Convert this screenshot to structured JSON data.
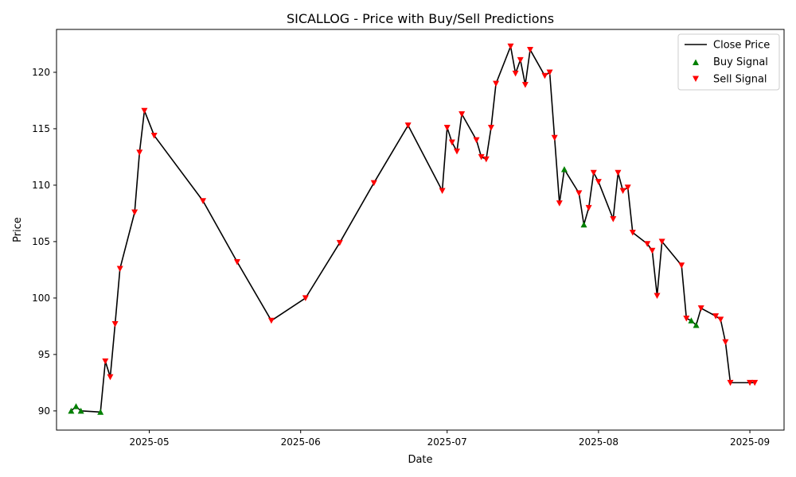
{
  "chart_data": {
    "type": "line",
    "title": "SICALLOG - Price with Buy/Sell Predictions",
    "xlabel": "Date",
    "ylabel": "Price",
    "xlim": [
      "2025-04-12",
      "2025-09-08"
    ],
    "ylim": [
      88.3,
      123.8
    ],
    "x_ticks": [
      "2025-05-01",
      "2025-06-01",
      "2025-07-01",
      "2025-08-01",
      "2025-09-01"
    ],
    "x_tick_labels": [
      "2025-05",
      "2025-06",
      "2025-07",
      "2025-08",
      "2025-09"
    ],
    "y_ticks": [
      90,
      95,
      100,
      105,
      110,
      115,
      120
    ],
    "legend": {
      "position": "top-right",
      "entries": [
        "Close Price",
        "Buy Signal",
        "Sell Signal"
      ]
    },
    "colors": {
      "close": "#000000",
      "buy": "#008000",
      "sell": "#ff0000"
    },
    "series": [
      {
        "name": "Close Price",
        "kind": "line",
        "points": [
          [
            "2025-04-15",
            90.0
          ],
          [
            "2025-04-16",
            90.4
          ],
          [
            "2025-04-17",
            90.0
          ],
          [
            "2025-04-21",
            89.9
          ],
          [
            "2025-04-22",
            94.4
          ],
          [
            "2025-04-23",
            93.0
          ],
          [
            "2025-04-24",
            97.7
          ],
          [
            "2025-04-25",
            102.6
          ],
          [
            "2025-04-28",
            107.6
          ],
          [
            "2025-04-29",
            112.9
          ],
          [
            "2025-04-30",
            116.6
          ],
          [
            "2025-05-02",
            114.4
          ],
          [
            "2025-05-12",
            108.6
          ],
          [
            "2025-05-19",
            103.2
          ],
          [
            "2025-05-26",
            98.0
          ],
          [
            "2025-06-02",
            100.0
          ],
          [
            "2025-06-09",
            104.9
          ],
          [
            "2025-06-16",
            110.2
          ],
          [
            "2025-06-23",
            115.3
          ],
          [
            "2025-06-30",
            109.5
          ],
          [
            "2025-07-01",
            115.1
          ],
          [
            "2025-07-02",
            113.8
          ],
          [
            "2025-07-03",
            113.0
          ],
          [
            "2025-07-04",
            116.3
          ],
          [
            "2025-07-07",
            114.0
          ],
          [
            "2025-07-08",
            112.5
          ],
          [
            "2025-07-09",
            112.3
          ],
          [
            "2025-07-10",
            115.1
          ],
          [
            "2025-07-11",
            119.0
          ],
          [
            "2025-07-14",
            122.3
          ],
          [
            "2025-07-15",
            119.9
          ],
          [
            "2025-07-16",
            121.1
          ],
          [
            "2025-07-17",
            118.9
          ],
          [
            "2025-07-18",
            122.0
          ],
          [
            "2025-07-21",
            119.7
          ],
          [
            "2025-07-22",
            120.0
          ],
          [
            "2025-07-23",
            114.2
          ],
          [
            "2025-07-24",
            108.4
          ],
          [
            "2025-07-25",
            111.4
          ],
          [
            "2025-07-28",
            109.3
          ],
          [
            "2025-07-29",
            106.5
          ],
          [
            "2025-07-30",
            108.0
          ],
          [
            "2025-07-31",
            111.1
          ],
          [
            "2025-08-01",
            110.3
          ],
          [
            "2025-08-04",
            107.0
          ],
          [
            "2025-08-05",
            111.1
          ],
          [
            "2025-08-06",
            109.5
          ],
          [
            "2025-08-07",
            109.8
          ],
          [
            "2025-08-08",
            105.8
          ],
          [
            "2025-08-11",
            104.8
          ],
          [
            "2025-08-12",
            104.2
          ],
          [
            "2025-08-13",
            100.2
          ],
          [
            "2025-08-14",
            105.0
          ],
          [
            "2025-08-18",
            102.9
          ],
          [
            "2025-08-19",
            98.2
          ],
          [
            "2025-08-20",
            98.0
          ],
          [
            "2025-08-21",
            97.6
          ],
          [
            "2025-08-22",
            99.1
          ],
          [
            "2025-08-25",
            98.4
          ],
          [
            "2025-08-26",
            98.1
          ],
          [
            "2025-08-27",
            96.1
          ],
          [
            "2025-08-28",
            92.5
          ],
          [
            "2025-09-01",
            92.5
          ],
          [
            "2025-09-02",
            92.5
          ]
        ]
      },
      {
        "name": "Buy Signal",
        "kind": "scatter",
        "marker": "triangle-up",
        "points": [
          [
            "2025-04-15",
            90.0
          ],
          [
            "2025-04-16",
            90.4
          ],
          [
            "2025-04-17",
            90.0
          ],
          [
            "2025-04-21",
            89.9
          ],
          [
            "2025-07-25",
            111.4
          ],
          [
            "2025-07-29",
            106.5
          ],
          [
            "2025-08-20",
            98.0
          ],
          [
            "2025-08-21",
            97.6
          ]
        ]
      },
      {
        "name": "Sell Signal",
        "kind": "scatter",
        "marker": "triangle-down",
        "points": [
          [
            "2025-04-22",
            94.4
          ],
          [
            "2025-04-23",
            93.0
          ],
          [
            "2025-04-24",
            97.7
          ],
          [
            "2025-04-25",
            102.6
          ],
          [
            "2025-04-28",
            107.6
          ],
          [
            "2025-04-29",
            112.9
          ],
          [
            "2025-04-30",
            116.6
          ],
          [
            "2025-05-02",
            114.4
          ],
          [
            "2025-05-12",
            108.6
          ],
          [
            "2025-05-19",
            103.2
          ],
          [
            "2025-05-26",
            98.0
          ],
          [
            "2025-06-02",
            100.0
          ],
          [
            "2025-06-09",
            104.9
          ],
          [
            "2025-06-16",
            110.2
          ],
          [
            "2025-06-23",
            115.3
          ],
          [
            "2025-06-30",
            109.5
          ],
          [
            "2025-07-01",
            115.1
          ],
          [
            "2025-07-02",
            113.8
          ],
          [
            "2025-07-03",
            113.0
          ],
          [
            "2025-07-04",
            116.3
          ],
          [
            "2025-07-07",
            114.0
          ],
          [
            "2025-07-08",
            112.5
          ],
          [
            "2025-07-09",
            112.3
          ],
          [
            "2025-07-10",
            115.1
          ],
          [
            "2025-07-11",
            119.0
          ],
          [
            "2025-07-14",
            122.3
          ],
          [
            "2025-07-15",
            119.9
          ],
          [
            "2025-07-16",
            121.1
          ],
          [
            "2025-07-17",
            118.9
          ],
          [
            "2025-07-18",
            122.0
          ],
          [
            "2025-07-21",
            119.7
          ],
          [
            "2025-07-22",
            120.0
          ],
          [
            "2025-07-23",
            114.2
          ],
          [
            "2025-07-24",
            108.4
          ],
          [
            "2025-07-28",
            109.3
          ],
          [
            "2025-07-30",
            108.0
          ],
          [
            "2025-07-31",
            111.1
          ],
          [
            "2025-08-01",
            110.3
          ],
          [
            "2025-08-04",
            107.0
          ],
          [
            "2025-08-05",
            111.1
          ],
          [
            "2025-08-06",
            109.5
          ],
          [
            "2025-08-07",
            109.8
          ],
          [
            "2025-08-08",
            105.8
          ],
          [
            "2025-08-11",
            104.8
          ],
          [
            "2025-08-12",
            104.2
          ],
          [
            "2025-08-13",
            100.2
          ],
          [
            "2025-08-14",
            105.0
          ],
          [
            "2025-08-18",
            102.9
          ],
          [
            "2025-08-19",
            98.2
          ],
          [
            "2025-08-22",
            99.1
          ],
          [
            "2025-08-25",
            98.4
          ],
          [
            "2025-08-26",
            98.1
          ],
          [
            "2025-08-27",
            96.1
          ],
          [
            "2025-08-28",
            92.5
          ],
          [
            "2025-09-01",
            92.5
          ],
          [
            "2025-09-02",
            92.5
          ]
        ]
      }
    ]
  }
}
